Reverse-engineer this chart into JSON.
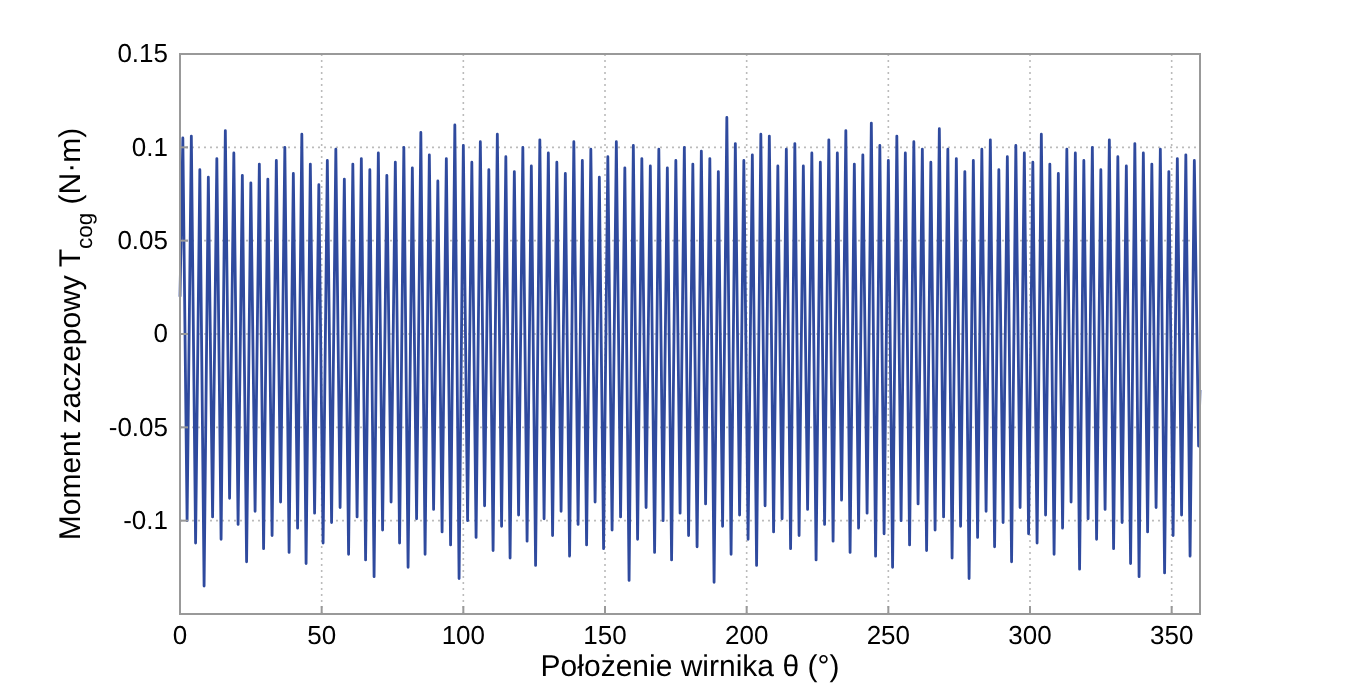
{
  "chart_data": {
    "type": "line",
    "xlabel": "Położenie wirnika θ (°)",
    "ylabel": "Moment zaczepowy T$_{cog}$ (N·m)",
    "xlim": [
      0,
      360
    ],
    "xticks": [
      0,
      50,
      100,
      150,
      200,
      250,
      300,
      350
    ],
    "ylim": [
      -0.15,
      0.15
    ],
    "yticks": [
      {
        "value": -0.15,
        "label": null
      },
      -0.1,
      -0.05,
      0,
      0.05,
      0.1,
      0.15
    ],
    "grid": true,
    "marker": "none",
    "line_style": "solid",
    "x": [
      0,
      1,
      2.5,
      4,
      5.5,
      7,
      8.5,
      10,
      11.5,
      13,
      14.5,
      16,
      17.5,
      19,
      20.5,
      22,
      23.5,
      25,
      26.5,
      28,
      29.5,
      31,
      32.5,
      34,
      35.5,
      37,
      38.5,
      40,
      41.5,
      43,
      44.5,
      46,
      47.5,
      49,
      50.5,
      52,
      53.5,
      55,
      56.5,
      58,
      59.5,
      61,
      62.5,
      64,
      65.5,
      67,
      68.5,
      70,
      71.5,
      73,
      74.5,
      76,
      77.5,
      79,
      80.5,
      82,
      83.5,
      85,
      86.5,
      88,
      89.5,
      91,
      92.5,
      94,
      95.5,
      97,
      98.5,
      100,
      101.5,
      103,
      104.5,
      106,
      107.5,
      109,
      110.5,
      112,
      113.5,
      115,
      116.5,
      118,
      119.5,
      121,
      122.5,
      124,
      125.5,
      127,
      128.5,
      130,
      131.5,
      133,
      134.5,
      136,
      137.5,
      139,
      140.5,
      142,
      143.5,
      145,
      146.5,
      148,
      149.5,
      151,
      152.5,
      154,
      155.5,
      157,
      158.5,
      160,
      161.5,
      163,
      164.5,
      166,
      167.5,
      169,
      170.5,
      172,
      173.5,
      175,
      176.5,
      178,
      179.5,
      181,
      182.5,
      184,
      185.5,
      187,
      188.5,
      190,
      191.5,
      193,
      194.5,
      196,
      197.5,
      199,
      200.5,
      202,
      203.5,
      205,
      206.5,
      208,
      209.5,
      211,
      212.5,
      214,
      215.5,
      217,
      218.5,
      220,
      221.5,
      223,
      224.5,
      226,
      227.5,
      229,
      230.5,
      232,
      233.5,
      235,
      236.5,
      238,
      239.5,
      241,
      242.5,
      244,
      245.5,
      247,
      248.5,
      250,
      251.5,
      253,
      254.5,
      256,
      257.5,
      259,
      260.5,
      262,
      263.5,
      265,
      266.5,
      268,
      269.5,
      271,
      272.5,
      274,
      275.5,
      277,
      278.5,
      280,
      281.5,
      283,
      284.5,
      286,
      287.5,
      289,
      290.5,
      292,
      293.5,
      295,
      296.5,
      298,
      299.5,
      301,
      302.5,
      304,
      305.5,
      307,
      308.5,
      310,
      311.5,
      313,
      314.5,
      316,
      317.5,
      319,
      320.5,
      322,
      323.5,
      325,
      326.5,
      328,
      329.5,
      331,
      332.5,
      334,
      335.5,
      337,
      338.5,
      340,
      341.5,
      343,
      344.5,
      346,
      347.5,
      349,
      350.5,
      352,
      353.5,
      355,
      356.5,
      358,
      359.5,
      360
    ],
    "series": [
      {
        "color": "#2f4a9e",
        "values": [
          0.02,
          0.105,
          -0.1,
          0.106,
          -0.112,
          0.088,
          -0.135,
          0.084,
          -0.098,
          0.094,
          -0.11,
          0.109,
          -0.088,
          0.097,
          -0.102,
          0.085,
          -0.122,
          0.081,
          -0.095,
          0.091,
          -0.115,
          0.083,
          -0.108,
          0.093,
          -0.09,
          0.1,
          -0.117,
          0.086,
          -0.104,
          0.107,
          -0.123,
          0.091,
          -0.096,
          0.08,
          -0.112,
          0.093,
          -0.101,
          0.099,
          -0.093,
          0.083,
          -0.118,
          0.091,
          -0.098,
          0.094,
          -0.121,
          0.088,
          -0.13,
          0.097,
          -0.105,
          0.085,
          -0.09,
          0.092,
          -0.112,
          0.1,
          -0.125,
          0.089,
          -0.099,
          0.108,
          -0.118,
          0.096,
          -0.094,
          0.082,
          -0.106,
          0.094,
          -0.113,
          0.112,
          -0.131,
          0.101,
          -0.1,
          0.092,
          -0.109,
          0.103,
          -0.092,
          0.088,
          -0.116,
          0.107,
          -0.103,
          0.095,
          -0.12,
          0.087,
          -0.097,
          0.1,
          -0.111,
          0.09,
          -0.124,
          0.104,
          -0.099,
          0.097,
          -0.108,
          0.092,
          -0.095,
          0.086,
          -0.119,
          0.103,
          -0.102,
          0.093,
          -0.113,
          0.099,
          -0.09,
          0.084,
          -0.115,
          0.095,
          -0.105,
          0.103,
          -0.098,
          0.089,
          -0.132,
          0.101,
          -0.11,
          0.094,
          -0.093,
          0.09,
          -0.117,
          0.099,
          -0.1,
          0.089,
          -0.121,
          0.093,
          -0.096,
          0.1,
          -0.108,
          0.091,
          -0.114,
          0.098,
          -0.091,
          0.094,
          -0.133,
          0.087,
          -0.103,
          0.116,
          -0.118,
          0.102,
          -0.097,
          0.093,
          -0.11,
          0.096,
          -0.124,
          0.107,
          -0.092,
          0.106,
          -0.106,
          0.09,
          -0.099,
          0.099,
          -0.115,
          0.102,
          -0.108,
          0.09,
          -0.094,
          0.097,
          -0.121,
          0.092,
          -0.102,
          0.104,
          -0.111,
          0.097,
          -0.089,
          0.109,
          -0.117,
          0.091,
          -0.104,
          0.096,
          -0.096,
          0.113,
          -0.119,
          0.101,
          -0.107,
          0.093,
          -0.125,
          0.106,
          -0.1,
          0.097,
          -0.113,
          0.103,
          -0.091,
          0.099,
          -0.116,
          0.092,
          -0.105,
          0.11,
          -0.098,
          0.099,
          -0.12,
          0.094,
          -0.103,
          0.087,
          -0.131,
          0.093,
          -0.109,
          0.099,
          -0.095,
          0.104,
          -0.114,
          0.088,
          -0.101,
          0.095,
          -0.122,
          0.101,
          -0.093,
          0.097,
          -0.107,
          0.092,
          -0.112,
          0.107,
          -0.097,
          0.091,
          -0.118,
          0.086,
          -0.104,
          0.099,
          -0.09,
          0.097,
          -0.126,
          0.093,
          -0.099,
          0.1,
          -0.11,
          0.088,
          -0.094,
          0.104,
          -0.115,
          0.095,
          -0.101,
          0.09,
          -0.123,
          0.102,
          -0.13,
          0.097,
          -0.106,
          0.091,
          -0.093,
          0.099,
          -0.128,
          0.087,
          -0.108,
          0.094,
          -0.097,
          0.096,
          -0.119,
          0.093,
          -0.06,
          -0.03
        ]
      }
    ]
  }
}
